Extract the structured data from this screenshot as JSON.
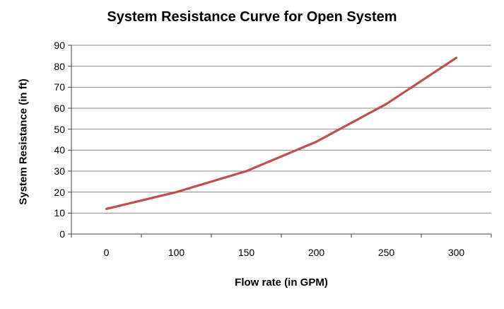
{
  "chart_data": {
    "type": "line",
    "title": "System Resistance Curve for Open System",
    "xlabel": "Flow rate (in GPM)",
    "ylabel": "System Resistance (in ft)",
    "categories": [
      "0",
      "100",
      "150",
      "200",
      "250",
      "300"
    ],
    "series": [
      {
        "name": "System Resistance",
        "values": [
          12,
          20,
          30,
          44,
          62,
          84
        ]
      }
    ],
    "ylim": [
      0,
      90
    ],
    "ytick_step": 10,
    "grid": "horizontal",
    "legend_position": "none",
    "colors": {
      "line": "#C0504D",
      "gridline": "#878787",
      "axis": "#404040",
      "text": "#000000",
      "background": "#FFFFFF"
    }
  }
}
